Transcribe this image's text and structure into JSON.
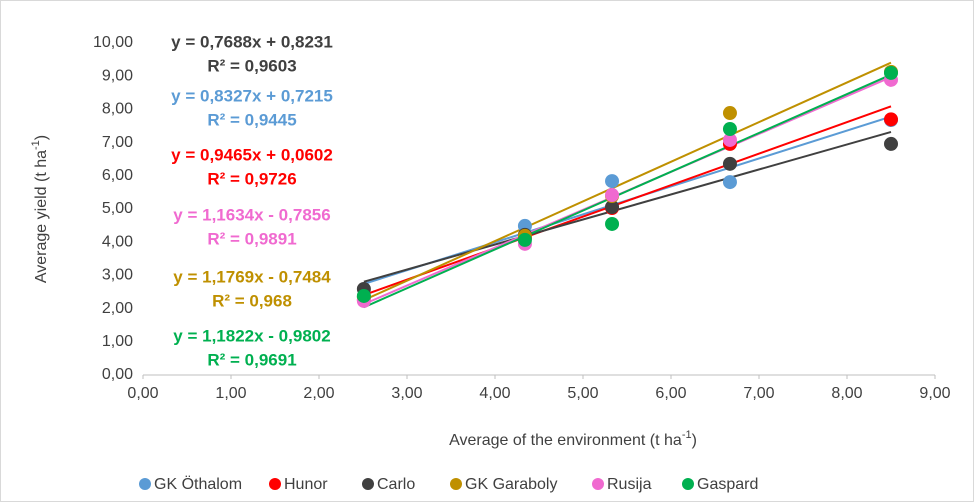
{
  "chart_data": {
    "type": "scatter",
    "x_label": [
      "Average of the environment (t ha",
      "-1",
      ")"
    ],
    "y_label": [
      "Average yield (t ha",
      "-1",
      ")"
    ],
    "x": [
      2.51,
      4.34,
      5.33,
      6.67,
      8.5
    ],
    "series": [
      {
        "name": "GK Öthalom",
        "color": "#5b9bd5",
        "values": [
          2.35,
          4.49,
          5.84,
          5.81,
          7.68
        ],
        "equation": "y = 0,8327x + 0,7215",
        "r2": "R² = 0,9445"
      },
      {
        "name": "Hunor",
        "color": "#ff0000",
        "values": [
          2.26,
          4.13,
          5.03,
          6.96,
          7.7
        ],
        "equation": "y = 0,9465x + 0,0602",
        "r2": "R² = 0,9726"
      },
      {
        "name": "Carlo",
        "color": "#404040",
        "values": [
          2.59,
          4.22,
          5.06,
          6.36,
          6.96
        ],
        "equation": "y = 0,7688x + 0,8231",
        "r2": "R² = 0,9603"
      },
      {
        "name": "GK Garaboly",
        "color": "#bf9000",
        "values": [
          2.35,
          4.19,
          5.39,
          7.89,
          9.13
        ],
        "equation": "y = 1,1769x - 0,7484",
        "r2": "R² = 0,968"
      },
      {
        "name": "Rusija",
        "color": "#f06ad0",
        "values": [
          2.23,
          3.95,
          5.42,
          7.08,
          8.89
        ],
        "equation": "y = 1,1634x - 0,7856",
        "r2": "R² = 0,9891"
      },
      {
        "name": "Gaspard",
        "color": "#00b050",
        "values": [
          2.38,
          4.07,
          4.55,
          7.41,
          9.1
        ],
        "equation": "y = 1,1822x - 0,9802",
        "r2": "R² = 0,9691"
      }
    ],
    "xlim": [
      0,
      9
    ],
    "xticks": [
      {
        "value": 0,
        "label": "0,00"
      },
      {
        "value": 1,
        "label": "1,00"
      },
      {
        "value": 2,
        "label": "2,00"
      },
      {
        "value": 3,
        "label": "3,00"
      },
      {
        "value": 4,
        "label": "4,00"
      },
      {
        "value": 5,
        "label": "5,00"
      },
      {
        "value": 6,
        "label": "6,00"
      },
      {
        "value": 7,
        "label": "7,00"
      },
      {
        "value": 8,
        "label": "8,00"
      },
      {
        "value": 9,
        "label": "9,00"
      }
    ],
    "ylim": [
      0,
      10
    ],
    "yticks": [
      {
        "value": 0,
        "label": "0,00"
      },
      {
        "value": 1,
        "label": "1,00"
      },
      {
        "value": 2,
        "label": "2,00"
      },
      {
        "value": 3,
        "label": "3,00"
      },
      {
        "value": 4,
        "label": "4,00"
      },
      {
        "value": 5,
        "label": "5,00"
      },
      {
        "value": 6,
        "label": "6,00"
      },
      {
        "value": 7,
        "label": "7,00"
      },
      {
        "value": 8,
        "label": "8,00"
      },
      {
        "value": 9,
        "label": "9,00"
      },
      {
        "value": 10,
        "label": "10,00"
      }
    ],
    "grid": false,
    "legend": "bottom",
    "trendline": true
  }
}
